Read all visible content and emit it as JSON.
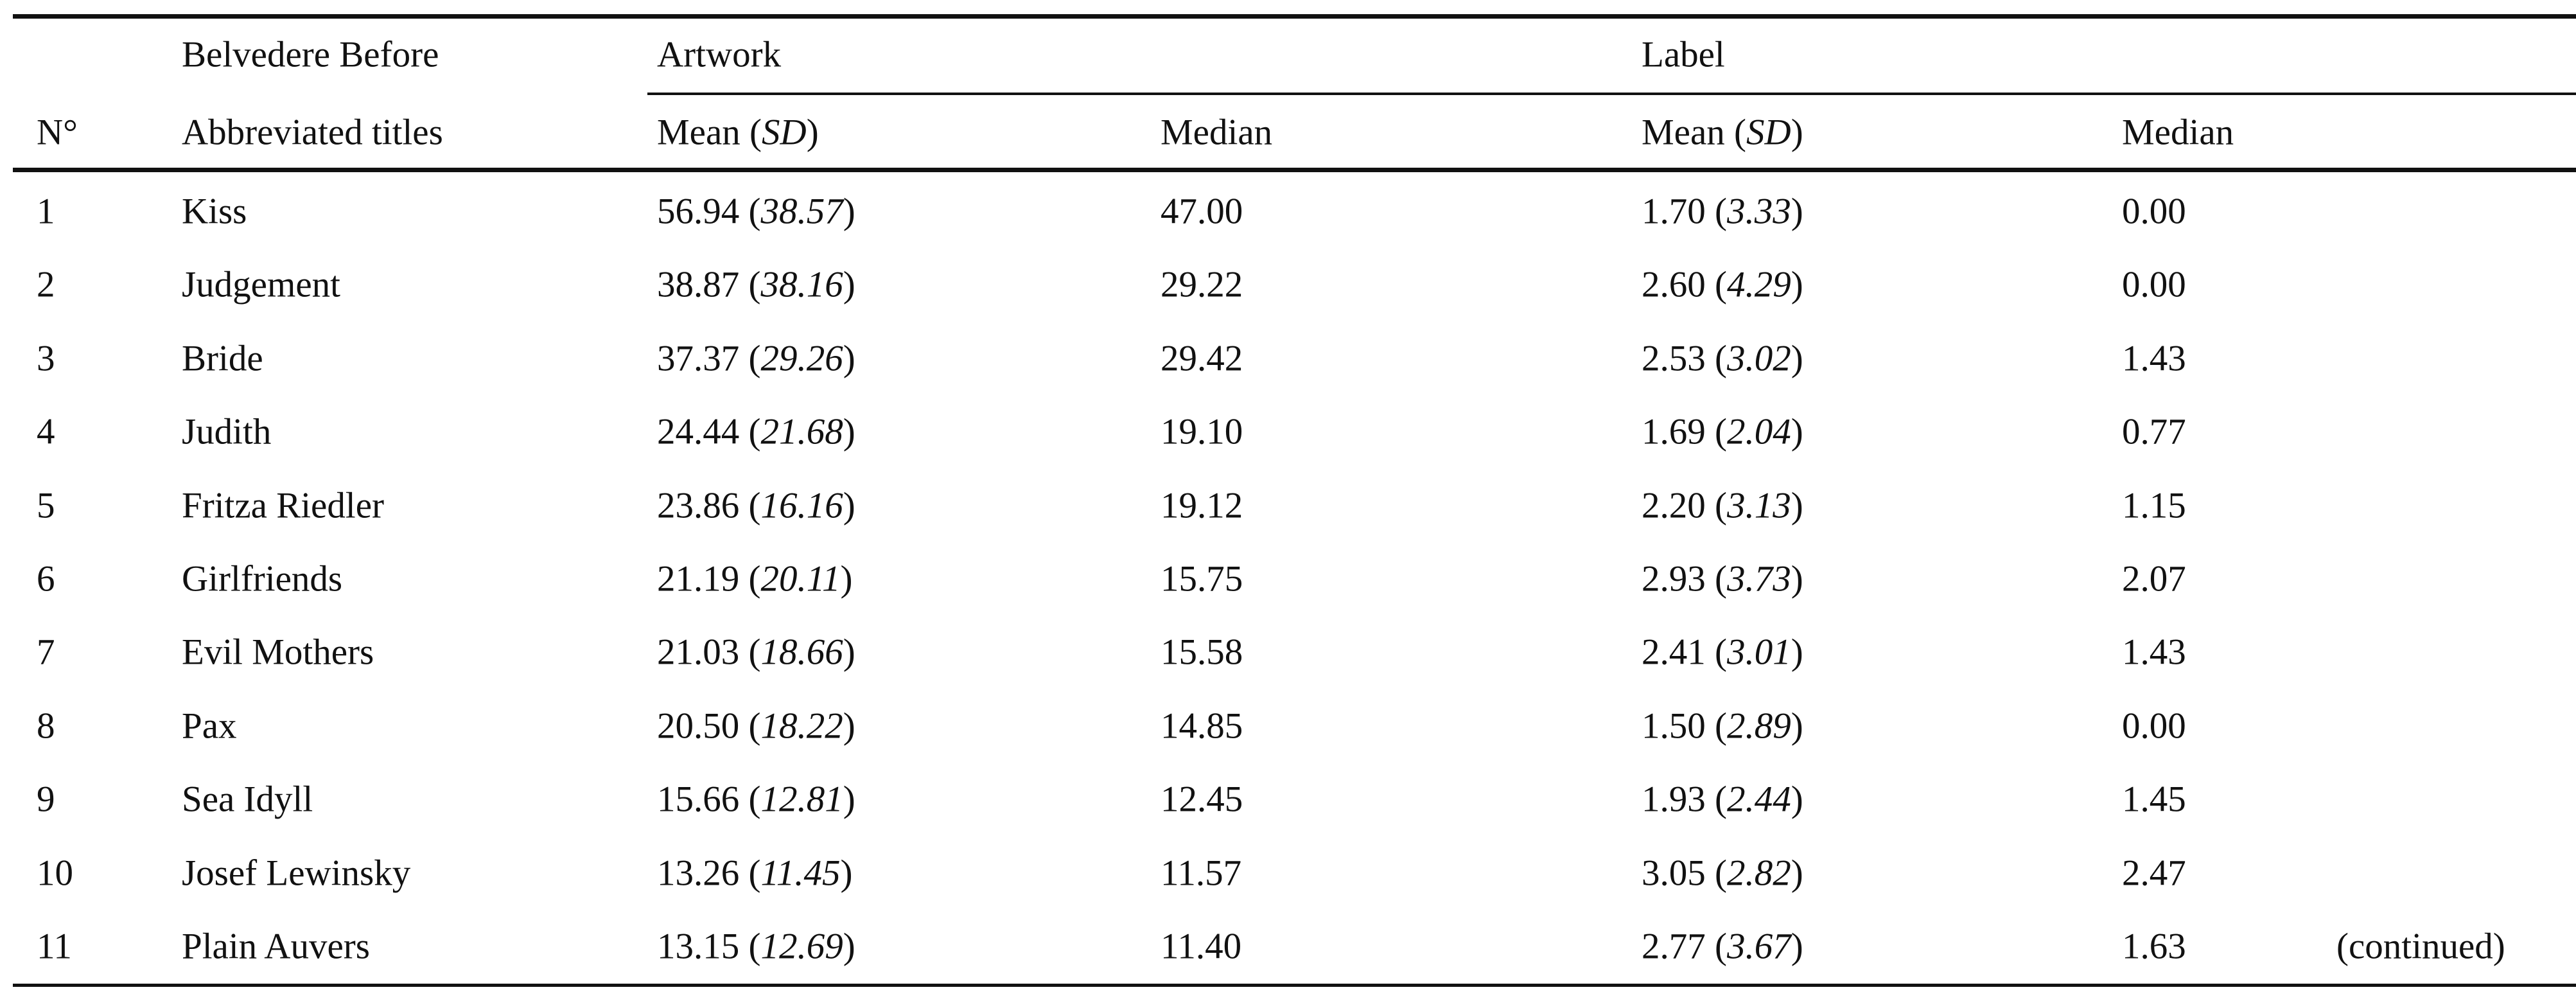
{
  "header": {
    "group_row": {
      "col2": "Belvedere Before",
      "artwork": "Artwork",
      "label": "Label"
    },
    "column_row": {
      "n": "N°",
      "titles": "Abbreviated titles",
      "artwork_mean": [
        "Mean (",
        "SD",
        ")"
      ],
      "artwork_median": "Median",
      "label_mean": [
        "Mean (",
        "SD",
        ")"
      ],
      "label_median": "Median"
    }
  },
  "table": {
    "rows": [
      [
        "1",
        "Kiss",
        [
          "56.94 (",
          "38.57",
          ")"
        ],
        "47.00",
        [
          "1.70 (",
          "3.33",
          ")"
        ],
        "0.00"
      ],
      [
        "2",
        "Judgement",
        [
          "38.87 (",
          "38.16",
          ")"
        ],
        "29.22",
        [
          "2.60 (",
          "4.29",
          ")"
        ],
        "0.00"
      ],
      [
        "3",
        "Bride",
        [
          "37.37 (",
          "29.26",
          ")"
        ],
        "29.42",
        [
          "2.53 (",
          "3.02",
          ")"
        ],
        "1.43"
      ],
      [
        "4",
        "Judith",
        [
          "24.44 (",
          "21.68",
          ")"
        ],
        "19.10",
        [
          "1.69 (",
          "2.04",
          ")"
        ],
        "0.77"
      ],
      [
        "5",
        "Fritza Riedler",
        [
          "23.86 (",
          "16.16",
          ")"
        ],
        "19.12",
        [
          "2.20 (",
          "3.13",
          ")"
        ],
        "1.15"
      ],
      [
        "6",
        "Girlfriends",
        [
          "21.19 (",
          "20.11",
          ")"
        ],
        "15.75",
        [
          "2.93 (",
          "3.73",
          ")"
        ],
        "2.07"
      ],
      [
        "7",
        "Evil Mothers",
        [
          "21.03 (",
          "18.66",
          ")"
        ],
        "15.58",
        [
          "2.41 (",
          "3.01",
          ")"
        ],
        "1.43"
      ],
      [
        "8",
        "Pax",
        [
          "20.50 (",
          "18.22",
          ")"
        ],
        "14.85",
        [
          "1.50 (",
          "2.89",
          ")"
        ],
        "0.00"
      ],
      [
        "9",
        "Sea Idyll",
        [
          "15.66 (",
          "12.81",
          ")"
        ],
        "12.45",
        [
          "1.93 (",
          "2.44",
          ")"
        ],
        "1.45"
      ],
      [
        "10",
        "Josef Lewinsky",
        [
          "13.26 (",
          "11.45",
          ")"
        ],
        "11.57",
        [
          "3.05 (",
          "2.82",
          ")"
        ],
        "2.47"
      ],
      [
        "11",
        "Plain Auvers",
        [
          "13.15 (",
          "12.69",
          ")"
        ],
        "11.40",
        [
          "2.77 (",
          "3.67",
          ")"
        ],
        "1.63"
      ]
    ]
  },
  "footer": {
    "note": "(continued)"
  }
}
